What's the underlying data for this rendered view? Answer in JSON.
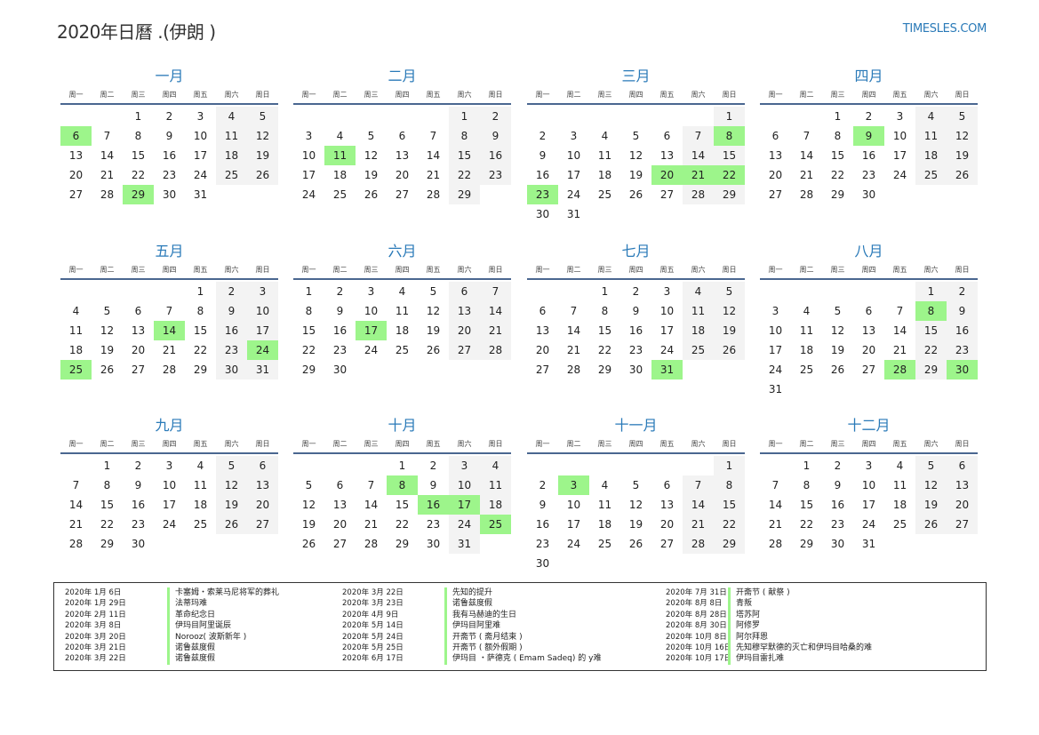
{
  "header": {
    "title": "2020年日曆 .(伊朗 )",
    "logo": "TIMESLES.COM"
  },
  "weekdays": [
    "周一",
    "周二",
    "周三",
    "周四",
    "周五",
    "周六",
    "周日"
  ],
  "colors": {
    "accent": "#2a7ab8",
    "holiday": "#9df58b",
    "weekend": "#f3f3f3",
    "rule": "#4a6790"
  },
  "months": [
    {
      "name": "一月",
      "days": 31,
      "first_weekday": "周三",
      "holidays": [
        6,
        29
      ]
    },
    {
      "name": "二月",
      "days": 29,
      "first_weekday": "周六",
      "holidays": [
        11
      ]
    },
    {
      "name": "三月",
      "days": 31,
      "first_weekday": "周日",
      "holidays": [
        8,
        20,
        21,
        22,
        23
      ]
    },
    {
      "name": "四月",
      "days": 30,
      "first_weekday": "周三",
      "holidays": [
        9
      ]
    },
    {
      "name": "五月",
      "days": 31,
      "first_weekday": "周五",
      "holidays": [
        14,
        24,
        25
      ]
    },
    {
      "name": "六月",
      "days": 30,
      "first_weekday": "周一",
      "holidays": [
        17
      ]
    },
    {
      "name": "七月",
      "days": 31,
      "first_weekday": "周三",
      "holidays": [
        31
      ]
    },
    {
      "name": "八月",
      "days": 31,
      "first_weekday": "周六",
      "holidays": [
        8,
        28,
        30
      ]
    },
    {
      "name": "九月",
      "days": 30,
      "first_weekday": "周二",
      "holidays": []
    },
    {
      "name": "十月",
      "days": 31,
      "first_weekday": "周四",
      "holidays": [
        8,
        16,
        17,
        25
      ]
    },
    {
      "name": "十一月",
      "days": 30,
      "first_weekday": "周日",
      "holidays": [
        3
      ]
    },
    {
      "name": "十二月",
      "days": 31,
      "first_weekday": "周二",
      "holidays": []
    }
  ],
  "legend": [
    [
      {
        "date": "2020年 1月 6日",
        "name": "卡塞姆・索莱马尼将军的葬礼"
      },
      {
        "date": "2020年 1月 29日",
        "name": "法蒂玛难"
      },
      {
        "date": "2020年 2月 11日",
        "name": "革命纪念日"
      },
      {
        "date": "2020年 3月 8日",
        "name": "伊玛目阿里诞辰"
      },
      {
        "date": "2020年 3月 20日",
        "name": "Norooz( 波斯新年 )"
      },
      {
        "date": "2020年 3月 21日",
        "name": "诺鲁兹度假"
      },
      {
        "date": "2020年 3月 22日",
        "name": "诺鲁兹度假"
      }
    ],
    [
      {
        "date": "2020年 3月 22日",
        "name": "先知的提升"
      },
      {
        "date": "2020年 3月 23日",
        "name": "诺鲁兹度假"
      },
      {
        "date": "2020年 4月 9日",
        "name": "我有马赫迪的生日"
      },
      {
        "date": "2020年 5月 14日",
        "name": "伊玛目阿里难"
      },
      {
        "date": "2020年 5月 24日",
        "name": "开斋节 ( 斋月结束 )"
      },
      {
        "date": "2020年 5月 25日",
        "name": "开斋节 ( 额外假期 )"
      },
      {
        "date": "2020年 6月 17日",
        "name": "伊玛目 ・萨德克 ( Emam Sadeq) 的 y难"
      }
    ],
    [
      {
        "date": "2020年 7月 31日",
        "name": "开斋节 ( 献祭 )"
      },
      {
        "date": "2020年 8月 8日",
        "name": "青叛"
      },
      {
        "date": "2020年 8月 28日",
        "name": "塔苏阿"
      },
      {
        "date": "2020年 8月 30日",
        "name": "阿修罗"
      },
      {
        "date": "2020年 10月 8日",
        "name": "阿尔拜恩"
      },
      {
        "date": "2020年 10月 16日",
        "name": "先知穆罕默德的灭亡和伊玛目哈桑的难"
      },
      {
        "date": "2020年 10月 17日",
        "name": "伊玛目雷扎难"
      }
    ]
  ]
}
